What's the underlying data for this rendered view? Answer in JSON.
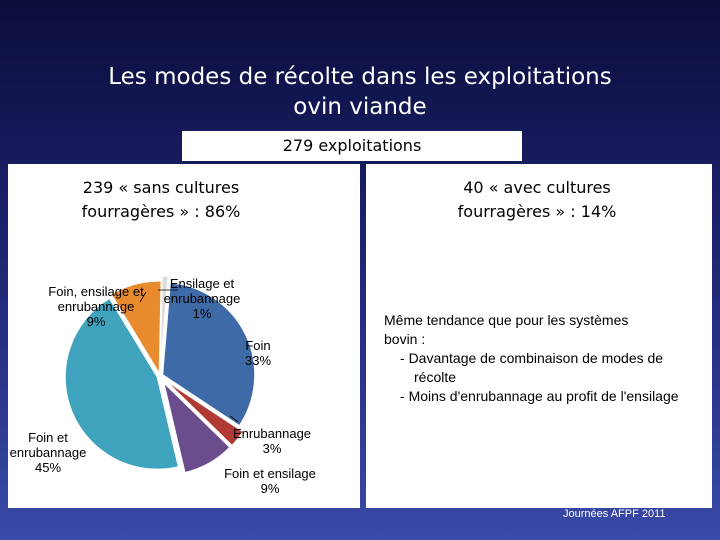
{
  "title_line1": "Les modes de récolte dans les exploitations",
  "title_line2": "ovin viande",
  "subtitle": "279 exploitations",
  "left": {
    "heading_line1": "239 « sans cultures",
    "heading_line2": "fourragères » : 86%"
  },
  "right": {
    "heading_line1": "40 « avec cultures",
    "heading_line2": "fourragères » : 14%",
    "note_intro_line1": "Même tendance que pour les systèmes",
    "note_intro_line2": "bovin :",
    "bullets": [
      "Davantage de combinaison de modes de récolte",
      "Moins d'enrubannage au profit de l'ensilage"
    ]
  },
  "footer": "Journées AFPF 2011",
  "chart_data": {
    "type": "pie",
    "title": "",
    "slices": [
      {
        "label_lines": [
          "Ensilage et",
          "enrubannage",
          "1%"
        ],
        "value": 1,
        "color": "#dcdcdc"
      },
      {
        "label_lines": [
          "Foin",
          "33%"
        ],
        "value": 33,
        "color": "#3f6aa8"
      },
      {
        "label_lines": [
          "Enrubannage",
          "3%"
        ],
        "value": 3,
        "color": "#b23a34"
      },
      {
        "label_lines": [
          "Foin et ensilage",
          "9%"
        ],
        "value": 9,
        "color": "#6b4d8e"
      },
      {
        "label_lines": [
          "Foin et",
          "enrubannage",
          "45%"
        ],
        "value": 45,
        "color": "#40a3bd"
      },
      {
        "label_lines": [
          "Foin, ensilage et",
          "enrubannage",
          "9%"
        ],
        "value": 9,
        "color": "#e88a2e"
      }
    ]
  }
}
